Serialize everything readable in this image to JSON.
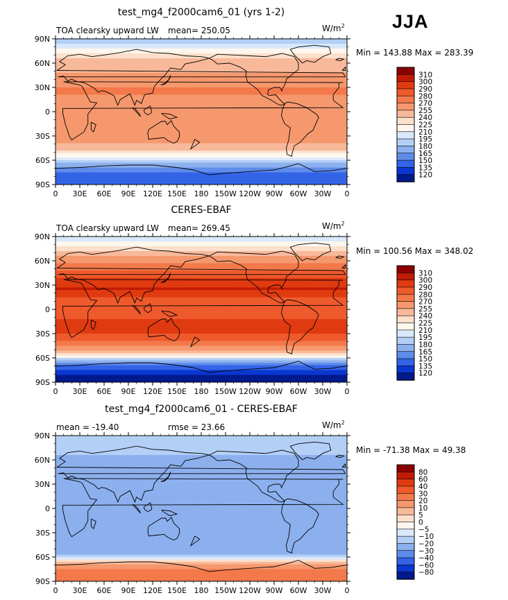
{
  "season": "JJA",
  "chart_data": [
    {
      "type": "heatmap",
      "title": "test_mg4_f2000cam6_01 (yrs 1-2)",
      "left_label": "TOA clearsky upward LW",
      "center_label": "mean= 250.05",
      "units": "W/m",
      "units_exp": "2",
      "minmax": "Min = 143.88 Max = 283.39",
      "xticks": [
        "0",
        "30E",
        "60E",
        "90E",
        "120E",
        "150E",
        "180",
        "150W",
        "120W",
        "90W",
        "60W",
        "30W",
        "0"
      ],
      "yticks": [
        "90N",
        "60N",
        "30N",
        "0",
        "30S",
        "60S",
        "90S"
      ],
      "xlim": [
        0,
        360
      ],
      "ylim": [
        -90,
        90
      ],
      "colorbar_levels": [
        "310",
        "300",
        "290",
        "280",
        "270",
        "255",
        "240",
        "225",
        "210",
        "195",
        "180",
        "165",
        "150",
        "135",
        "120"
      ],
      "colorbar_colors": [
        "#8b0000",
        "#c21b05",
        "#e03a10",
        "#ef5a2c",
        "#f3794a",
        "#f6986e",
        "#f8b99a",
        "#fde0cc",
        "#fff6ee",
        "#d9e9fb",
        "#b4cff5",
        "#8cb0ee",
        "#5f8cea",
        "#3363e6",
        "#0a37cf",
        "#001a8c"
      ],
      "zonal_profile": {
        "lat": [
          85,
          75,
          65,
          55,
          45,
          35,
          25,
          15,
          5,
          -5,
          -15,
          -25,
          -35,
          -45,
          -55,
          -65,
          -75,
          -85
        ],
        "value": [
          190,
          215,
          240,
          250,
          258,
          268,
          272,
          266,
          260,
          262,
          268,
          270,
          260,
          245,
          215,
          175,
          150,
          135
        ]
      }
    },
    {
      "type": "heatmap",
      "title": "CERES-EBAF",
      "left_label": "TOA clearsky upward LW",
      "center_label": "mean= 269.45",
      "units": "W/m",
      "units_exp": "2",
      "minmax": "Min = 100.56 Max = 348.02",
      "xticks": [
        "0",
        "30E",
        "60E",
        "90E",
        "120E",
        "150E",
        "180",
        "150W",
        "120W",
        "90W",
        "60W",
        "30W",
        "0"
      ],
      "yticks": [
        "90N",
        "60N",
        "30N",
        "0",
        "30S",
        "60S",
        "90S"
      ],
      "xlim": [
        0,
        360
      ],
      "ylim": [
        -90,
        90
      ],
      "colorbar_levels": [
        "310",
        "300",
        "290",
        "280",
        "270",
        "255",
        "240",
        "225",
        "210",
        "195",
        "180",
        "165",
        "150",
        "135",
        "120"
      ],
      "colorbar_colors": [
        "#8b0000",
        "#c21b05",
        "#e03a10",
        "#ef5a2c",
        "#f3794a",
        "#f6986e",
        "#f8b99a",
        "#fde0cc",
        "#fff6ee",
        "#d9e9fb",
        "#b4cff5",
        "#8cb0ee",
        "#5f8cea",
        "#3363e6",
        "#0a37cf",
        "#001a8c"
      ],
      "zonal_profile": {
        "lat": [
          85,
          75,
          65,
          55,
          45,
          35,
          25,
          15,
          5,
          -5,
          -15,
          -25,
          -35,
          -45,
          -55,
          -65,
          -75,
          -85
        ],
        "value": [
          205,
          232,
          258,
          272,
          282,
          296,
          302,
          290,
          282,
          286,
          292,
          294,
          284,
          268,
          240,
          170,
          130,
          115
        ]
      }
    },
    {
      "type": "heatmap",
      "title": "test_mg4_f2000cam6_01 - CERES-EBAF",
      "left_label": "mean = -19.40",
      "center_label": "rmse =  23.66",
      "units": "W/m",
      "units_exp": "2",
      "minmax": "Min = -71.38 Max =  49.38",
      "xticks": [
        "0",
        "30E",
        "60E",
        "90E",
        "120E",
        "150E",
        "180",
        "150W",
        "120W",
        "90W",
        "60W",
        "30W",
        "0"
      ],
      "yticks": [
        "90N",
        "60N",
        "30N",
        "0",
        "30S",
        "60S",
        "90S"
      ],
      "xlim": [
        0,
        360
      ],
      "ylim": [
        -90,
        90
      ],
      "colorbar_levels": [
        "80",
        "60",
        "40",
        "30",
        "20",
        "10",
        "5",
        "0",
        "−5",
        "−10",
        "−20",
        "−30",
        "−40",
        "−60",
        "−80"
      ],
      "colorbar_colors": [
        "#8b0000",
        "#c21b05",
        "#e03a10",
        "#ef5a2c",
        "#f3794a",
        "#f6986e",
        "#f8b99a",
        "#fde0cc",
        "#fff6ee",
        "#d9e9fb",
        "#b4cff5",
        "#8cb0ee",
        "#5f8cea",
        "#3363e6",
        "#0a37cf",
        "#001a8c"
      ],
      "zonal_profile": {
        "lat": [
          85,
          75,
          65,
          55,
          45,
          35,
          25,
          15,
          5,
          -5,
          -15,
          -25,
          -35,
          -45,
          -55,
          -65,
          -75,
          -85
        ],
        "value": [
          -12,
          -18,
          -20,
          -22,
          -24,
          -27,
          -30,
          -24,
          -22,
          -24,
          -24,
          -24,
          -22,
          -20,
          -24,
          5,
          20,
          22
        ]
      }
    }
  ]
}
